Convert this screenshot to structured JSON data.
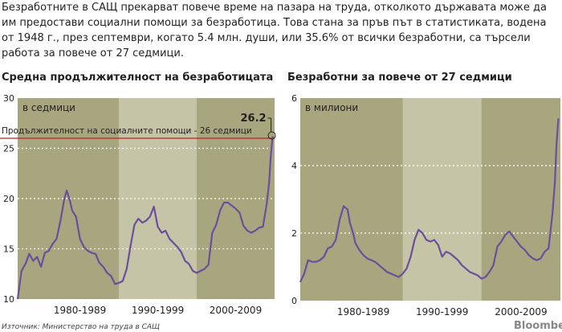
{
  "intro_text": "Безработните в САЩ прекарват повече време на пазара на труда, отколкото държавата може да им предостави социални помощи за безработица. Това стана за пръв път в статистиката, водена от 1948 г., през септември, когато 5.4 млн. души, или 35.6% от всички безработни, са търсели работа за повече от 27 седмици.",
  "source": "Източник: Министерство на труда в САЩ",
  "brand": "Bloomberg",
  "colors": {
    "line": "#6b4f9c",
    "band_dark": "#a7a67e",
    "band_light": "#c6c4a6",
    "threshold": "#b3261e",
    "grid": "#ffffff"
  },
  "chart_data": [
    {
      "type": "line",
      "title": "Средна продължителност на безработицата",
      "unit_label": "в седмици",
      "ylim": [
        10,
        30
      ],
      "yticks": [
        10,
        15,
        20,
        25,
        30
      ],
      "xlim": [
        1977,
        2010
      ],
      "decade_bands": [
        {
          "label": "1980-1989",
          "start": 1980,
          "end": 1990
        },
        {
          "label": "1990-1999",
          "start": 1990,
          "end": 2000
        },
        {
          "label": "2000-2009",
          "start": 2000,
          "end": 2010
        }
      ],
      "threshold": {
        "value": 26,
        "label": "Продължителност на социалните помощи - 26 седмици"
      },
      "callout": {
        "x": 2009.75,
        "value": 26.2,
        "label": "26.2"
      },
      "series": [
        {
          "x": [
            1977,
            1977.5,
            1978,
            1978.5,
            1979,
            1979.5,
            1980,
            1980.5,
            1981,
            1981.5,
            1982,
            1982.5,
            1983,
            1983.3,
            1983.7,
            1984,
            1984.5,
            1985,
            1985.5,
            1986,
            1986.5,
            1987,
            1987.5,
            1988,
            1988.5,
            1989,
            1989.5,
            1990,
            1990.5,
            1991,
            1991.5,
            1992,
            1992.5,
            1993,
            1993.5,
            1994,
            1994.5,
            1995,
            1995.5,
            1996,
            1996.5,
            1997,
            1997.5,
            1998,
            1998.5,
            1999,
            1999.5,
            2000,
            2000.5,
            2001,
            2001.5,
            2002,
            2002.5,
            2003,
            2003.5,
            2004,
            2004.5,
            2005,
            2005.5,
            2006,
            2006.5,
            2007,
            2007.5,
            2008,
            2008.5,
            2009,
            2009.3,
            2009.5,
            2009.75
          ],
          "values": [
            10.0,
            12.8,
            13.5,
            14.5,
            13.8,
            14.2,
            13.2,
            14.6,
            14.8,
            15.5,
            16.0,
            17.8,
            20.0,
            20.8,
            19.8,
            18.8,
            18.2,
            16.0,
            15.2,
            14.8,
            14.6,
            14.5,
            13.6,
            13.2,
            12.6,
            12.3,
            11.5,
            11.6,
            11.8,
            13.0,
            15.3,
            17.4,
            18.0,
            17.6,
            17.8,
            18.2,
            19.2,
            17.2,
            16.6,
            16.8,
            16.0,
            15.6,
            15.2,
            14.7,
            13.8,
            13.5,
            12.8,
            12.6,
            12.8,
            13.0,
            13.4,
            16.6,
            17.4,
            18.8,
            19.6,
            19.6,
            19.3,
            19.0,
            18.6,
            17.3,
            16.8,
            16.6,
            16.8,
            17.1,
            17.2,
            19.5,
            21.6,
            24.2,
            26.2
          ]
        }
      ]
    },
    {
      "type": "line",
      "title": "Безработни за повече от 27 седмици",
      "unit_label": "в милиони",
      "ylim": [
        0,
        6
      ],
      "yticks": [
        0,
        2,
        4,
        6
      ],
      "xlim": [
        1977,
        2010
      ],
      "decade_bands": [
        {
          "label": "1980-1989",
          "start": 1980,
          "end": 1990
        },
        {
          "label": "1990-1999",
          "start": 1990,
          "end": 2000
        },
        {
          "label": "2000-2009",
          "start": 2000,
          "end": 2010
        }
      ],
      "series": [
        {
          "x": [
            1977,
            1977.5,
            1978,
            1978.5,
            1979,
            1979.5,
            1980,
            1980.5,
            1981,
            1981.5,
            1982,
            1982.5,
            1983,
            1983.3,
            1983.7,
            1984,
            1984.5,
            1985,
            1985.5,
            1986,
            1986.5,
            1987,
            1987.5,
            1988,
            1988.5,
            1989,
            1989.5,
            1990,
            1990.5,
            1991,
            1991.5,
            1992,
            1992.5,
            1993,
            1993.5,
            1994,
            1994.5,
            1995,
            1995.5,
            1996,
            1996.5,
            1997,
            1997.5,
            1998,
            1998.5,
            1999,
            1999.5,
            2000,
            2000.5,
            2001,
            2001.5,
            2002,
            2002.5,
            2003,
            2003.5,
            2004,
            2004.5,
            2005,
            2005.5,
            2006,
            2006.5,
            2007,
            2007.5,
            2008,
            2008.5,
            2009,
            2009.3,
            2009.5,
            2009.75
          ],
          "values": [
            0.55,
            0.8,
            1.2,
            1.15,
            1.15,
            1.2,
            1.3,
            1.55,
            1.6,
            1.8,
            2.4,
            2.8,
            2.7,
            2.3,
            2.0,
            1.7,
            1.5,
            1.35,
            1.25,
            1.2,
            1.15,
            1.05,
            0.95,
            0.85,
            0.8,
            0.75,
            0.7,
            0.8,
            0.95,
            1.3,
            1.8,
            2.1,
            2.0,
            1.8,
            1.75,
            1.8,
            1.65,
            1.3,
            1.45,
            1.4,
            1.3,
            1.2,
            1.05,
            0.95,
            0.85,
            0.8,
            0.75,
            0.65,
            0.7,
            0.85,
            1.05,
            1.6,
            1.75,
            1.95,
            2.05,
            1.9,
            1.75,
            1.6,
            1.5,
            1.35,
            1.25,
            1.2,
            1.25,
            1.45,
            1.55,
            2.6,
            3.5,
            4.6,
            5.4
          ]
        }
      ]
    }
  ]
}
